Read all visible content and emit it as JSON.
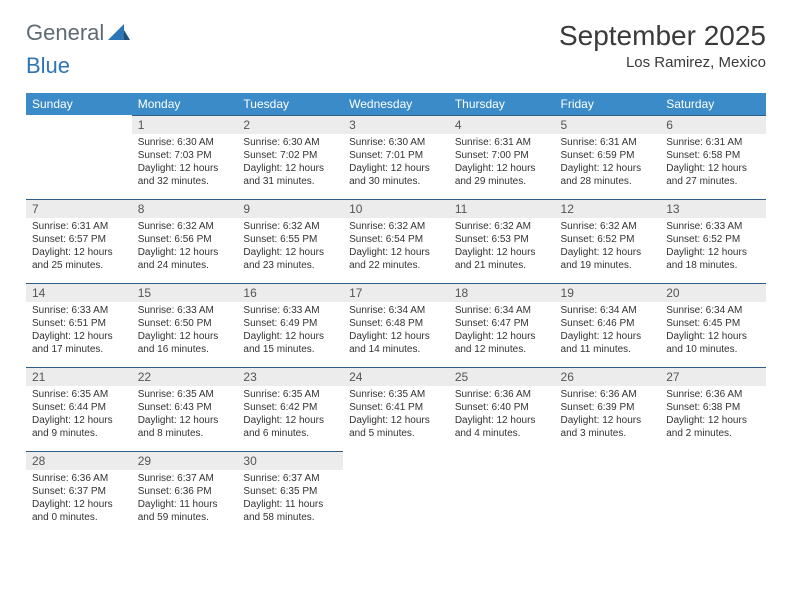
{
  "logo": {
    "part1": "General",
    "part2": "Blue"
  },
  "header": {
    "month_title": "September 2025",
    "location": "Los Ramirez, Mexico"
  },
  "colors": {
    "header_bg": "#3b8bc9",
    "header_text": "#ffffff",
    "daynum_bg": "#ececec",
    "daynum_border": "#2f5d86",
    "body_text": "#333333",
    "logo_gray": "#5f6a72",
    "logo_blue": "#2e75b6"
  },
  "typography": {
    "title_fontsize": 28,
    "dayheader_fontsize": 12,
    "cell_fontsize": 10
  },
  "calendar": {
    "columns": [
      "Sunday",
      "Monday",
      "Tuesday",
      "Wednesday",
      "Thursday",
      "Friday",
      "Saturday"
    ],
    "weeks": [
      [
        null,
        {
          "n": "1",
          "sr": "Sunrise: 6:30 AM",
          "ss": "Sunset: 7:03 PM",
          "d1": "Daylight: 12 hours",
          "d2": "and 32 minutes."
        },
        {
          "n": "2",
          "sr": "Sunrise: 6:30 AM",
          "ss": "Sunset: 7:02 PM",
          "d1": "Daylight: 12 hours",
          "d2": "and 31 minutes."
        },
        {
          "n": "3",
          "sr": "Sunrise: 6:30 AM",
          "ss": "Sunset: 7:01 PM",
          "d1": "Daylight: 12 hours",
          "d2": "and 30 minutes."
        },
        {
          "n": "4",
          "sr": "Sunrise: 6:31 AM",
          "ss": "Sunset: 7:00 PM",
          "d1": "Daylight: 12 hours",
          "d2": "and 29 minutes."
        },
        {
          "n": "5",
          "sr": "Sunrise: 6:31 AM",
          "ss": "Sunset: 6:59 PM",
          "d1": "Daylight: 12 hours",
          "d2": "and 28 minutes."
        },
        {
          "n": "6",
          "sr": "Sunrise: 6:31 AM",
          "ss": "Sunset: 6:58 PM",
          "d1": "Daylight: 12 hours",
          "d2": "and 27 minutes."
        }
      ],
      [
        {
          "n": "7",
          "sr": "Sunrise: 6:31 AM",
          "ss": "Sunset: 6:57 PM",
          "d1": "Daylight: 12 hours",
          "d2": "and 25 minutes."
        },
        {
          "n": "8",
          "sr": "Sunrise: 6:32 AM",
          "ss": "Sunset: 6:56 PM",
          "d1": "Daylight: 12 hours",
          "d2": "and 24 minutes."
        },
        {
          "n": "9",
          "sr": "Sunrise: 6:32 AM",
          "ss": "Sunset: 6:55 PM",
          "d1": "Daylight: 12 hours",
          "d2": "and 23 minutes."
        },
        {
          "n": "10",
          "sr": "Sunrise: 6:32 AM",
          "ss": "Sunset: 6:54 PM",
          "d1": "Daylight: 12 hours",
          "d2": "and 22 minutes."
        },
        {
          "n": "11",
          "sr": "Sunrise: 6:32 AM",
          "ss": "Sunset: 6:53 PM",
          "d1": "Daylight: 12 hours",
          "d2": "and 21 minutes."
        },
        {
          "n": "12",
          "sr": "Sunrise: 6:32 AM",
          "ss": "Sunset: 6:52 PM",
          "d1": "Daylight: 12 hours",
          "d2": "and 19 minutes."
        },
        {
          "n": "13",
          "sr": "Sunrise: 6:33 AM",
          "ss": "Sunset: 6:52 PM",
          "d1": "Daylight: 12 hours",
          "d2": "and 18 minutes."
        }
      ],
      [
        {
          "n": "14",
          "sr": "Sunrise: 6:33 AM",
          "ss": "Sunset: 6:51 PM",
          "d1": "Daylight: 12 hours",
          "d2": "and 17 minutes."
        },
        {
          "n": "15",
          "sr": "Sunrise: 6:33 AM",
          "ss": "Sunset: 6:50 PM",
          "d1": "Daylight: 12 hours",
          "d2": "and 16 minutes."
        },
        {
          "n": "16",
          "sr": "Sunrise: 6:33 AM",
          "ss": "Sunset: 6:49 PM",
          "d1": "Daylight: 12 hours",
          "d2": "and 15 minutes."
        },
        {
          "n": "17",
          "sr": "Sunrise: 6:34 AM",
          "ss": "Sunset: 6:48 PM",
          "d1": "Daylight: 12 hours",
          "d2": "and 14 minutes."
        },
        {
          "n": "18",
          "sr": "Sunrise: 6:34 AM",
          "ss": "Sunset: 6:47 PM",
          "d1": "Daylight: 12 hours",
          "d2": "and 12 minutes."
        },
        {
          "n": "19",
          "sr": "Sunrise: 6:34 AM",
          "ss": "Sunset: 6:46 PM",
          "d1": "Daylight: 12 hours",
          "d2": "and 11 minutes."
        },
        {
          "n": "20",
          "sr": "Sunrise: 6:34 AM",
          "ss": "Sunset: 6:45 PM",
          "d1": "Daylight: 12 hours",
          "d2": "and 10 minutes."
        }
      ],
      [
        {
          "n": "21",
          "sr": "Sunrise: 6:35 AM",
          "ss": "Sunset: 6:44 PM",
          "d1": "Daylight: 12 hours",
          "d2": "and 9 minutes."
        },
        {
          "n": "22",
          "sr": "Sunrise: 6:35 AM",
          "ss": "Sunset: 6:43 PM",
          "d1": "Daylight: 12 hours",
          "d2": "and 8 minutes."
        },
        {
          "n": "23",
          "sr": "Sunrise: 6:35 AM",
          "ss": "Sunset: 6:42 PM",
          "d1": "Daylight: 12 hours",
          "d2": "and 6 minutes."
        },
        {
          "n": "24",
          "sr": "Sunrise: 6:35 AM",
          "ss": "Sunset: 6:41 PM",
          "d1": "Daylight: 12 hours",
          "d2": "and 5 minutes."
        },
        {
          "n": "25",
          "sr": "Sunrise: 6:36 AM",
          "ss": "Sunset: 6:40 PM",
          "d1": "Daylight: 12 hours",
          "d2": "and 4 minutes."
        },
        {
          "n": "26",
          "sr": "Sunrise: 6:36 AM",
          "ss": "Sunset: 6:39 PM",
          "d1": "Daylight: 12 hours",
          "d2": "and 3 minutes."
        },
        {
          "n": "27",
          "sr": "Sunrise: 6:36 AM",
          "ss": "Sunset: 6:38 PM",
          "d1": "Daylight: 12 hours",
          "d2": "and 2 minutes."
        }
      ],
      [
        {
          "n": "28",
          "sr": "Sunrise: 6:36 AM",
          "ss": "Sunset: 6:37 PM",
          "d1": "Daylight: 12 hours",
          "d2": "and 0 minutes."
        },
        {
          "n": "29",
          "sr": "Sunrise: 6:37 AM",
          "ss": "Sunset: 6:36 PM",
          "d1": "Daylight: 11 hours",
          "d2": "and 59 minutes."
        },
        {
          "n": "30",
          "sr": "Sunrise: 6:37 AM",
          "ss": "Sunset: 6:35 PM",
          "d1": "Daylight: 11 hours",
          "d2": "and 58 minutes."
        },
        null,
        null,
        null,
        null
      ]
    ]
  }
}
